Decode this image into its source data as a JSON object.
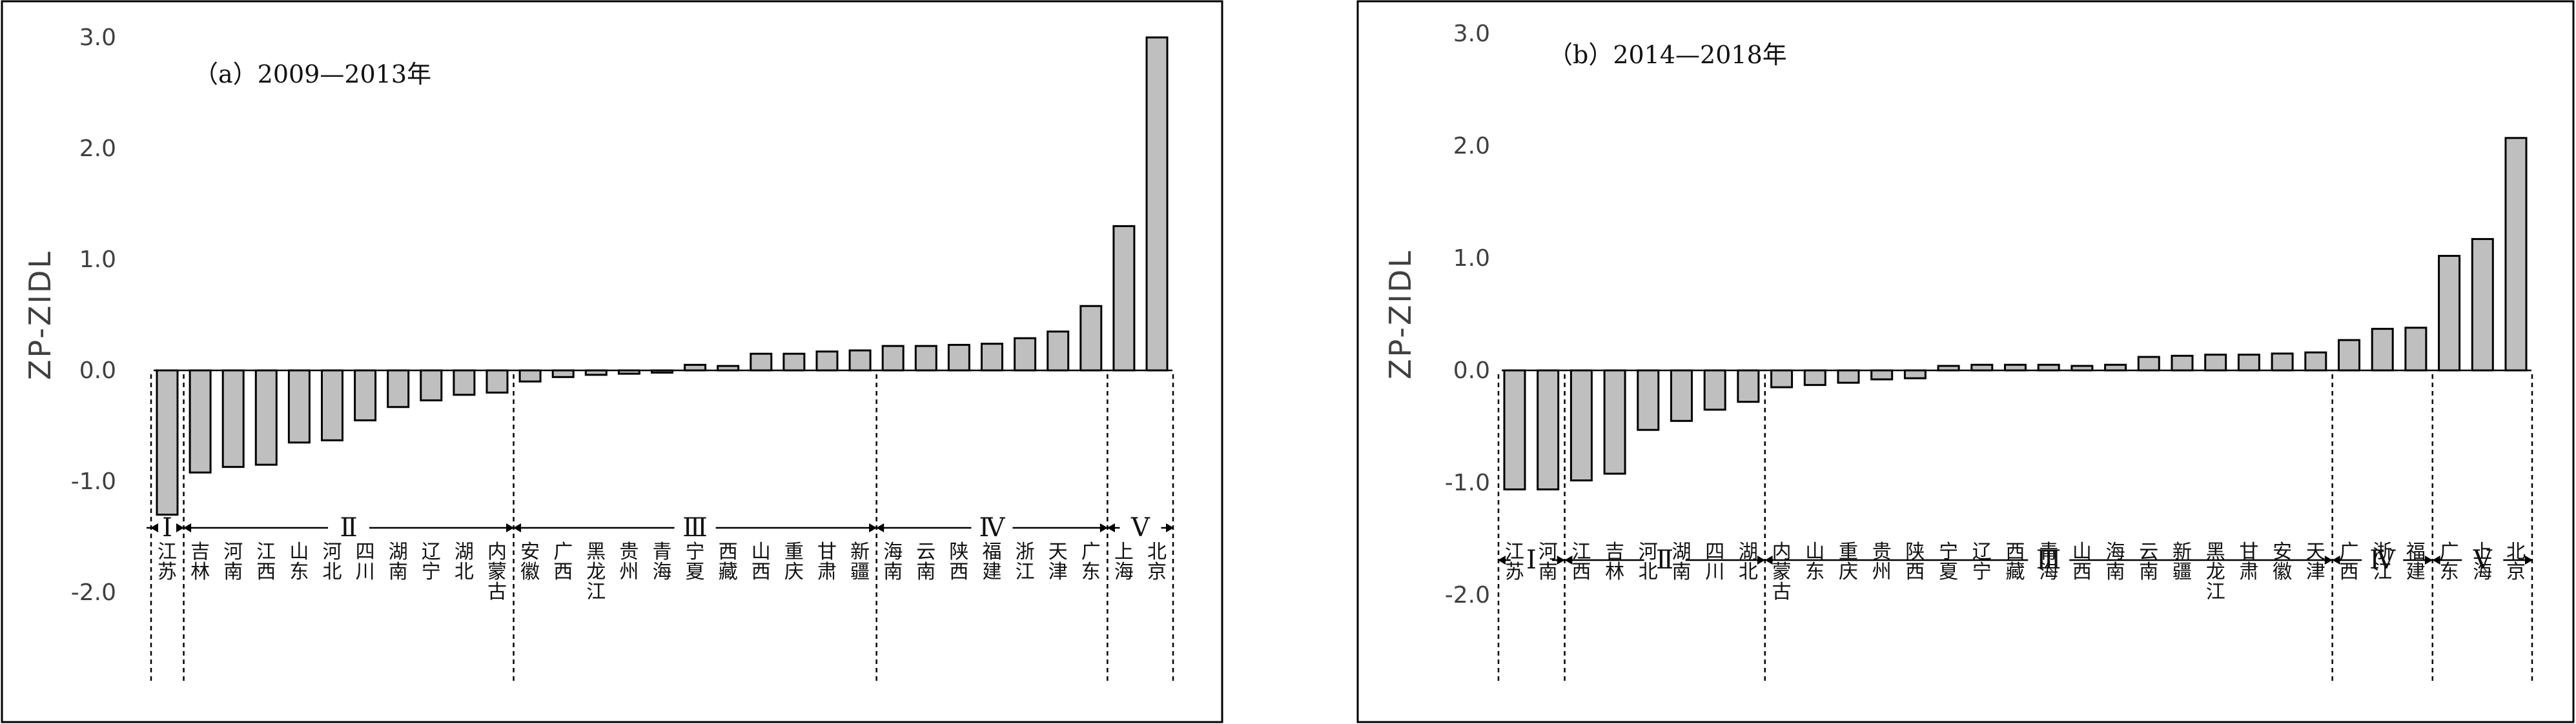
{
  "chart_data": [
    {
      "type": "bar",
      "title": "（a）2009—2013年",
      "ylabel": "ZP-ZIDL",
      "ylim": [
        -2.0,
        3.0
      ],
      "yticks": [
        "3.0",
        "2.0",
        "1.0",
        "0.0",
        "-1.0",
        "-2.0"
      ],
      "categories": [
        "江苏",
        "吉林",
        "河南",
        "江西",
        "山东",
        "河北",
        "四川",
        "湖南",
        "辽宁",
        "湖北",
        "内蒙古",
        "安徽",
        "广西",
        "黑龙江",
        "贵州",
        "青海",
        "宁夏",
        "西藏",
        "山西",
        "重庆",
        "甘肃",
        "新疆",
        "海南",
        "云南",
        "陕西",
        "福建",
        "浙江",
        "天津",
        "广东",
        "上海",
        "北京"
      ],
      "values": [
        -1.3,
        -0.92,
        -0.87,
        -0.85,
        -0.65,
        -0.63,
        -0.45,
        -0.33,
        -0.27,
        -0.22,
        -0.2,
        -0.1,
        -0.06,
        -0.04,
        -0.03,
        -0.02,
        0.05,
        0.04,
        0.15,
        0.15,
        0.17,
        0.18,
        0.22,
        0.22,
        0.23,
        0.24,
        0.29,
        0.35,
        0.58,
        1.3,
        3.0
      ],
      "groups": [
        {
          "label": "Ⅰ",
          "start": 0,
          "end": 0
        },
        {
          "label": "Ⅱ",
          "start": 1,
          "end": 10
        },
        {
          "label": "Ⅲ",
          "start": 11,
          "end": 21
        },
        {
          "label": "Ⅳ",
          "start": 22,
          "end": 28
        },
        {
          "label": "Ⅴ",
          "start": 29,
          "end": 30
        }
      ]
    },
    {
      "type": "bar",
      "title": "（b）2014—2018年",
      "ylabel": "ZP-ZIDL",
      "ylim": [
        -2.0,
        3.0
      ],
      "yticks": [
        "3.0",
        "2.0",
        "1.0",
        "0.0",
        "-1.0",
        "-2.0"
      ],
      "categories": [
        "江苏",
        "河南",
        "江西",
        "吉林",
        "河北",
        "湖南",
        "四川",
        "湖北",
        "内蒙古",
        "山东",
        "重庆",
        "贵州",
        "陕西",
        "宁夏",
        "辽宁",
        "西藏",
        "青海",
        "山西",
        "海南",
        "云南",
        "新疆",
        "黑龙江",
        "甘肃",
        "安徽",
        "天津",
        "广西",
        "浙江",
        "福建",
        "广东",
        "上海",
        "北京"
      ],
      "values": [
        -1.06,
        -1.06,
        -0.98,
        -0.92,
        -0.53,
        -0.45,
        -0.35,
        -0.28,
        -0.15,
        -0.13,
        -0.11,
        -0.08,
        -0.07,
        0.04,
        0.05,
        0.05,
        0.05,
        0.04,
        0.05,
        0.12,
        0.13,
        0.14,
        0.14,
        0.15,
        0.16,
        0.27,
        0.37,
        0.38,
        1.02,
        1.17,
        2.07
      ],
      "groups": [
        {
          "label": "Ⅰ",
          "start": 0,
          "end": 1
        },
        {
          "label": "Ⅱ",
          "start": 2,
          "end": 7
        },
        {
          "label": "Ⅲ",
          "start": 8,
          "end": 24
        },
        {
          "label": "Ⅳ",
          "start": 25,
          "end": 27
        },
        {
          "label": "Ⅴ",
          "start": 28,
          "end": 30
        }
      ]
    }
  ]
}
